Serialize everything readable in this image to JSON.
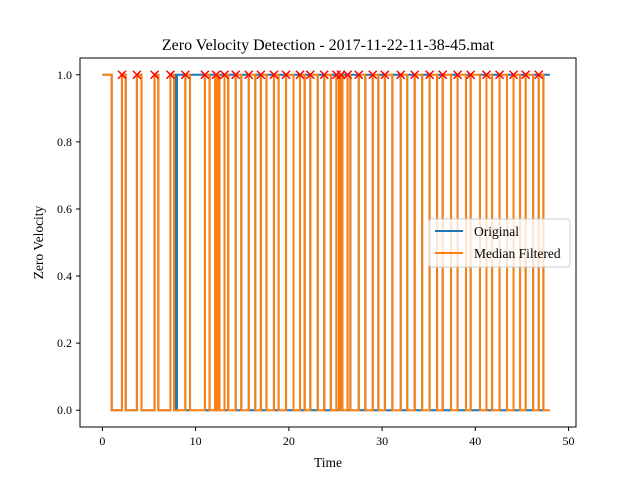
{
  "chart_data": {
    "type": "line",
    "title": "Zero Velocity Detection - 2017-11-22-11-38-45.mat",
    "xlabel": "Time",
    "ylabel": "Zero Velocity",
    "xlim": [
      -2.4,
      50.8
    ],
    "ylim": [
      -0.05,
      1.05
    ],
    "xticks": [
      0,
      10,
      20,
      30,
      40,
      50
    ],
    "xtick_labels": [
      "0",
      "10",
      "20",
      "30",
      "40",
      "50"
    ],
    "yticks": [
      0.0,
      0.2,
      0.4,
      0.6,
      0.8,
      1.0
    ],
    "ytick_labels": [
      "0.0",
      "0.2",
      "0.4",
      "0.6",
      "0.8",
      "1.0"
    ],
    "grid": false,
    "legend_position": "center-right",
    "series": [
      {
        "name": "Original",
        "color": "#1f77b4",
        "style": "step",
        "initial": 1,
        "final": 1,
        "x_start": 0,
        "x_end": 48,
        "toggle_times": [
          1.0,
          2.1,
          2.5,
          3.7,
          4.2,
          5.6,
          6.0,
          7.3,
          7.7,
          7.75,
          7.9,
          8.0,
          8.9,
          9.4,
          11.0,
          11.5,
          12.1,
          12.2,
          12.4,
          12.55,
          13.1,
          13.5,
          14.3,
          14.9,
          15.7,
          16.4,
          17.0,
          17.6,
          18.4,
          18.9,
          19.7,
          20.5,
          21.2,
          21.7,
          22.3,
          23.1,
          23.8,
          24.5,
          25.1,
          25.4,
          25.6,
          25.75,
          26.3,
          26.6,
          27.5,
          28.2,
          29.0,
          29.6,
          30.3,
          31.1,
          32.0,
          32.7,
          33.5,
          34.3,
          35.1,
          35.9,
          36.5,
          37.4,
          38.1,
          39.0,
          39.5,
          40.5,
          41.2,
          41.8,
          42.6,
          43.4,
          44.1,
          44.8,
          45.4,
          46.2,
          46.8,
          47.3
        ],
        "markers_x": [
          2.1,
          3.7,
          5.6,
          7.3,
          8.9,
          11.0,
          12.2,
          13.1,
          14.3,
          15.7,
          17.0,
          18.4,
          19.7,
          21.2,
          22.3,
          23.8,
          25.1,
          25.6,
          26.3,
          27.5,
          29.0,
          30.3,
          32.0,
          33.5,
          35.1,
          36.5,
          38.1,
          39.5,
          41.2,
          42.6,
          44.1,
          45.4,
          46.8
        ],
        "markers_y": 1.0,
        "marker_color": "#ff0000"
      },
      {
        "name": "Median Filtered",
        "color": "#ff7f0e",
        "style": "step",
        "initial": 1,
        "final": 1,
        "x_start": 0,
        "x_end": 48,
        "toggle_times": [
          1.0,
          2.1,
          2.5,
          3.7,
          4.2,
          5.6,
          6.0,
          7.3,
          7.7,
          8.9,
          9.4,
          11.0,
          11.5,
          12.1,
          12.2,
          12.4,
          12.55,
          13.1,
          13.5,
          14.3,
          14.9,
          15.7,
          16.4,
          17.0,
          17.6,
          18.4,
          18.9,
          19.7,
          20.5,
          21.2,
          21.7,
          22.3,
          23.1,
          23.8,
          24.5,
          25.1,
          25.4,
          25.6,
          25.75,
          26.3,
          26.6,
          27.5,
          28.2,
          29.0,
          29.6,
          30.3,
          31.1,
          32.0,
          32.7,
          33.5,
          34.3,
          35.1,
          35.9,
          36.5,
          37.4,
          38.1,
          39.0,
          39.5,
          40.5,
          41.2,
          41.8,
          42.6,
          43.4,
          44.1,
          44.8,
          45.4,
          46.2,
          46.8,
          47.3
        ]
      }
    ]
  }
}
